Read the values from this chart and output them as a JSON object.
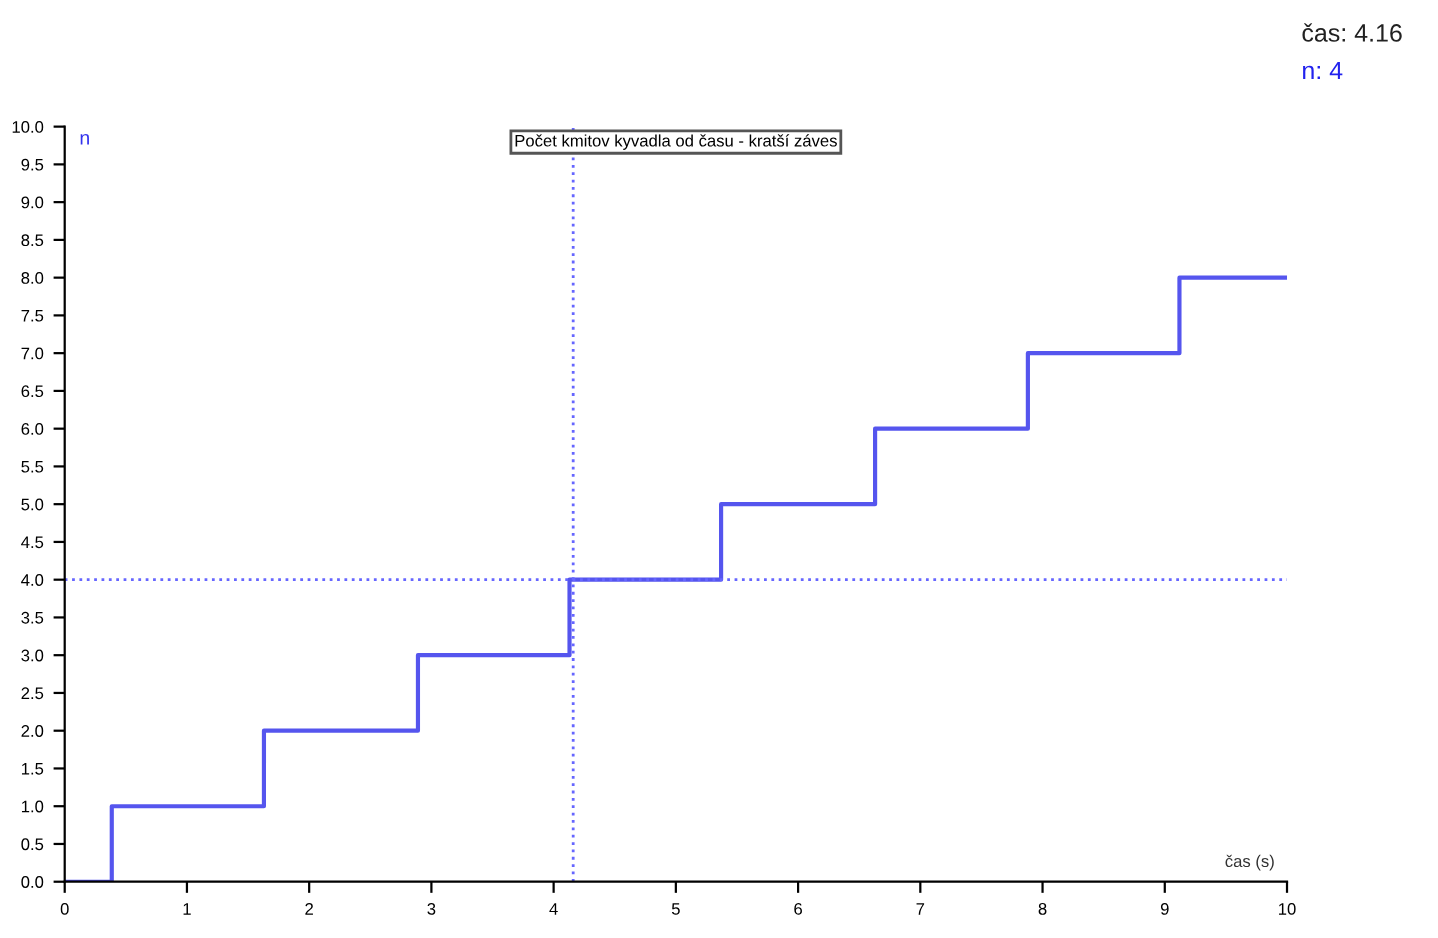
{
  "chart_data": {
    "type": "step",
    "title": "Počet kmitov kyvadla od času - kratší záves",
    "xlabel": "čas (s)",
    "ylabel": "n",
    "x": [
      0,
      0.385,
      1.63,
      2.89,
      4.13,
      5.37,
      6.63,
      7.88,
      9.12,
      10
    ],
    "series": [
      {
        "color": "#5555ee",
        "values": [
          0,
          1,
          2,
          3,
          4,
          5,
          6,
          7,
          8,
          8
        ]
      }
    ],
    "xlim": [
      0,
      10
    ],
    "xticks": [
      0,
      1,
      2,
      3,
      4,
      5,
      6,
      7,
      8,
      9,
      10
    ],
    "ylim": [
      0,
      10
    ],
    "yticks": [
      {
        "value": 0,
        "label": "0.0"
      },
      {
        "value": 0.5,
        "label": "0.5"
      },
      {
        "value": 1,
        "label": "1.0"
      },
      {
        "value": 1.5,
        "label": "1.5"
      },
      {
        "value": 2,
        "label": "2.0"
      },
      {
        "value": 2.5,
        "label": "2.5"
      },
      {
        "value": 3,
        "label": "3.0"
      },
      {
        "value": 3.5,
        "label": "3.5"
      },
      {
        "value": 4,
        "label": "4.0"
      },
      {
        "value": 4.5,
        "label": "4.5"
      },
      {
        "value": 5,
        "label": "5.0"
      },
      {
        "value": 5.5,
        "label": "5.5"
      },
      {
        "value": 6,
        "label": "6.0"
      },
      {
        "value": 6.5,
        "label": "6.5"
      },
      {
        "value": 7,
        "label": "7.0"
      },
      {
        "value": 7.5,
        "label": "7.5"
      },
      {
        "value": 8,
        "label": "8.0"
      },
      {
        "value": 8.5,
        "label": "8.5"
      },
      {
        "value": 9,
        "label": "9.0"
      },
      {
        "value": 9.5,
        "label": "9.5"
      },
      {
        "value": 10,
        "label": "10.0"
      }
    ],
    "ref_lines": [
      {
        "axis": "x",
        "value": 4.16,
        "color": "#6666ff",
        "line_style": "dotted"
      },
      {
        "axis": "y",
        "value": 4,
        "color": "#6666ff",
        "line_style": "dotted"
      }
    ],
    "annotations": [
      "čas: 4.16",
      "n: 4"
    ],
    "grid": false
  }
}
